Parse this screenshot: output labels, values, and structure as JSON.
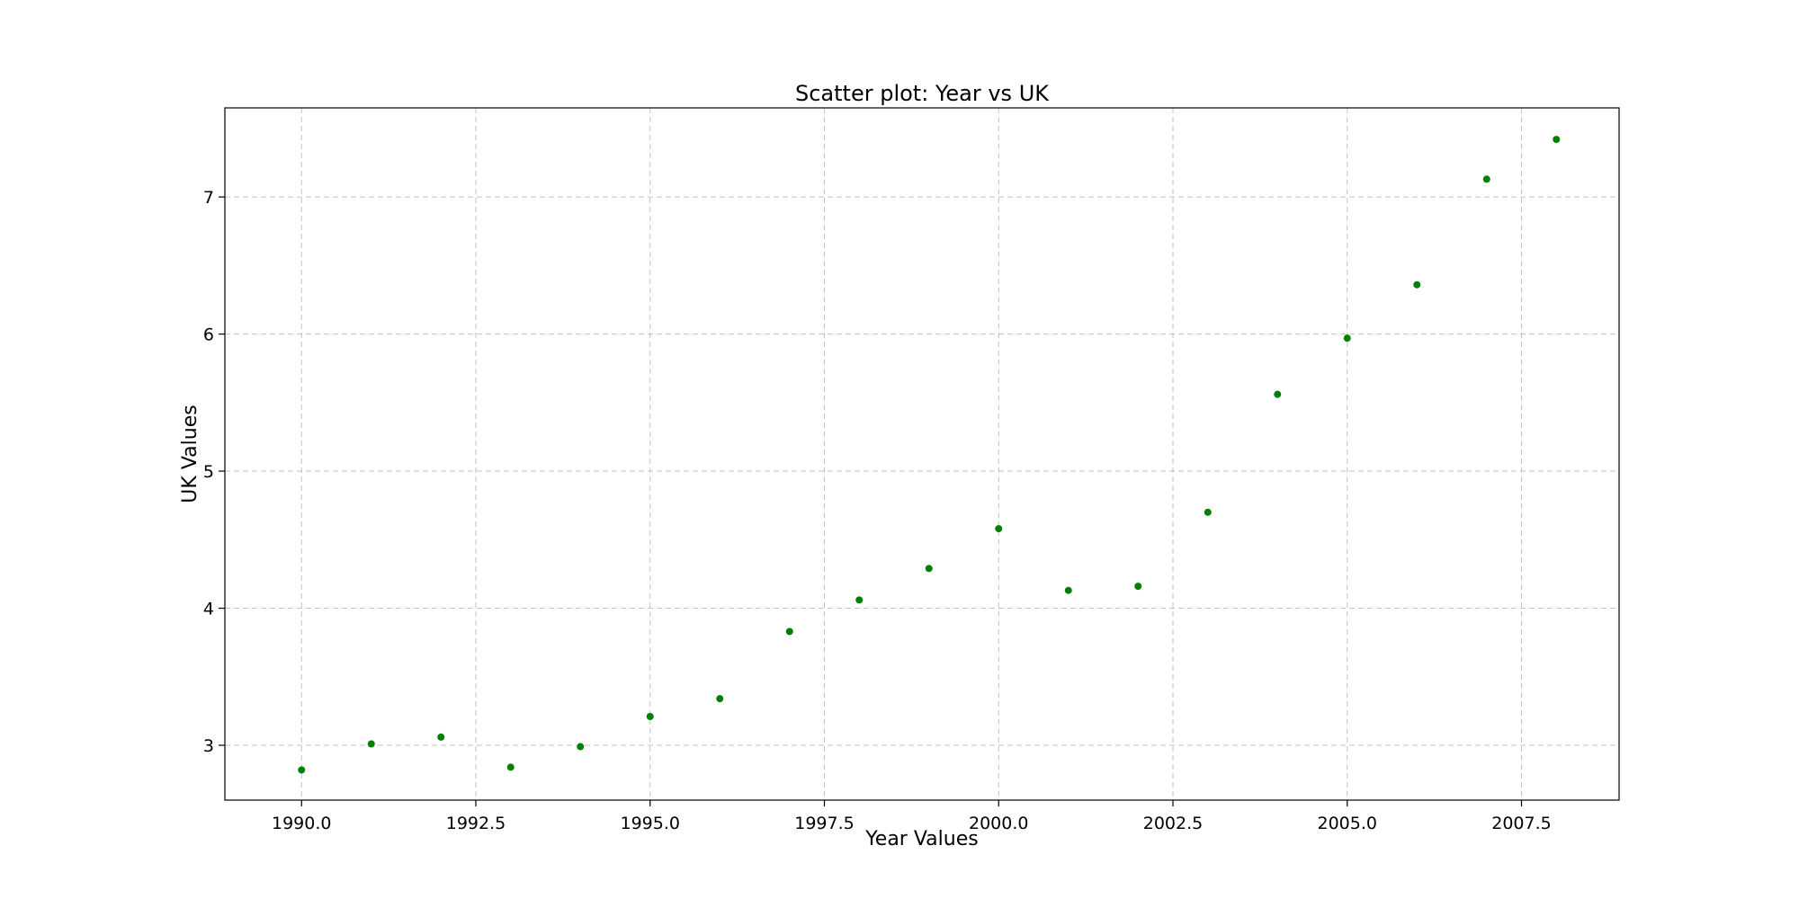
{
  "chart_data": {
    "type": "scatter",
    "title": "Scatter plot: Year vs UK",
    "xlabel": "Year Values",
    "ylabel": "UK Values",
    "xlim": [
      1988.9,
      2008.9
    ],
    "ylim": [
      2.6,
      7.65
    ],
    "x_ticks": [
      1990.0,
      1992.5,
      1995.0,
      1997.5,
      2000.0,
      2002.5,
      2005.0,
      2007.5
    ],
    "x_tick_labels": [
      "1990.0",
      "1992.5",
      "1995.0",
      "1997.5",
      "2000.0",
      "2002.5",
      "2005.0",
      "2007.5"
    ],
    "y_ticks": [
      3,
      4,
      5,
      6,
      7
    ],
    "y_tick_labels": [
      "3",
      "4",
      "5",
      "6",
      "7"
    ],
    "grid": true,
    "color": "#008000",
    "series": [
      {
        "x": [
          1990,
          1991,
          1992,
          1993,
          1994,
          1995,
          1996,
          1997,
          1998,
          1999,
          2000,
          2001,
          2002,
          2003,
          2004,
          2005,
          2006,
          2007,
          2008
        ],
        "y": [
          2.82,
          3.01,
          3.06,
          2.84,
          2.99,
          3.21,
          3.34,
          3.83,
          4.06,
          4.29,
          4.58,
          4.13,
          4.16,
          4.7,
          5.56,
          5.97,
          6.36,
          7.13,
          7.42
        ]
      }
    ]
  }
}
